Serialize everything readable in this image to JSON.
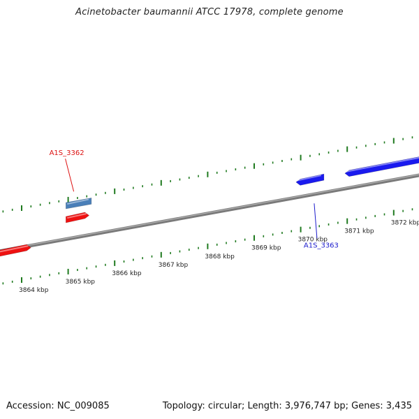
{
  "title": "Acinetobacter baumannii ATCC 17978, complete genome",
  "footer": {
    "accession": "Accession: NC_009085",
    "summary": "Topology: circular; Length: 3,976,747 bp; Genes: 3,435"
  },
  "colors": {
    "backbone": "#7a7a7a",
    "tick": "#1f7a1f",
    "forward_gene": "#ee1111",
    "reverse_gene": "#1a1aee",
    "highlight_gene": "#4a7fb8"
  },
  "scale": {
    "unit": "kbp",
    "labels": [
      {
        "text": "3864 kbp",
        "kbp": 3864
      },
      {
        "text": "3865 kbp",
        "kbp": 3865
      },
      {
        "text": "3866 kbp",
        "kbp": 3866
      },
      {
        "text": "3867 kbp",
        "kbp": 3867
      },
      {
        "text": "3868 kbp",
        "kbp": 3868
      },
      {
        "text": "3869 kbp",
        "kbp": 3869
      },
      {
        "text": "3870 kbp",
        "kbp": 3870
      },
      {
        "text": "3871 kbp",
        "kbp": 3871
      },
      {
        "text": "3872 kbp",
        "kbp": 3872
      }
    ]
  },
  "genes": [
    {
      "name": "",
      "strand": "forward",
      "color_key": "forward_gene",
      "start_kbp": 3863.45,
      "end_kbp": 3864.2
    },
    {
      "name": "",
      "strand": "forward",
      "color_key": "forward_gene",
      "start_kbp": 3864.95,
      "end_kbp": 3865.45
    },
    {
      "name": "A1S_3362",
      "strand": "reverse",
      "color_key": "highlight_gene",
      "start_kbp": 3864.95,
      "end_kbp": 3865.5,
      "label_color": "#dd1111"
    },
    {
      "name": "A1S_3363",
      "strand": "reverse",
      "color_key": "reverse_gene",
      "start_kbp": 3869.9,
      "end_kbp": 3870.5,
      "label_color": "#1a1acc"
    },
    {
      "name": "",
      "strand": "reverse",
      "color_key": "reverse_gene",
      "start_kbp": 3870.95,
      "end_kbp": 3872.65
    }
  ]
}
